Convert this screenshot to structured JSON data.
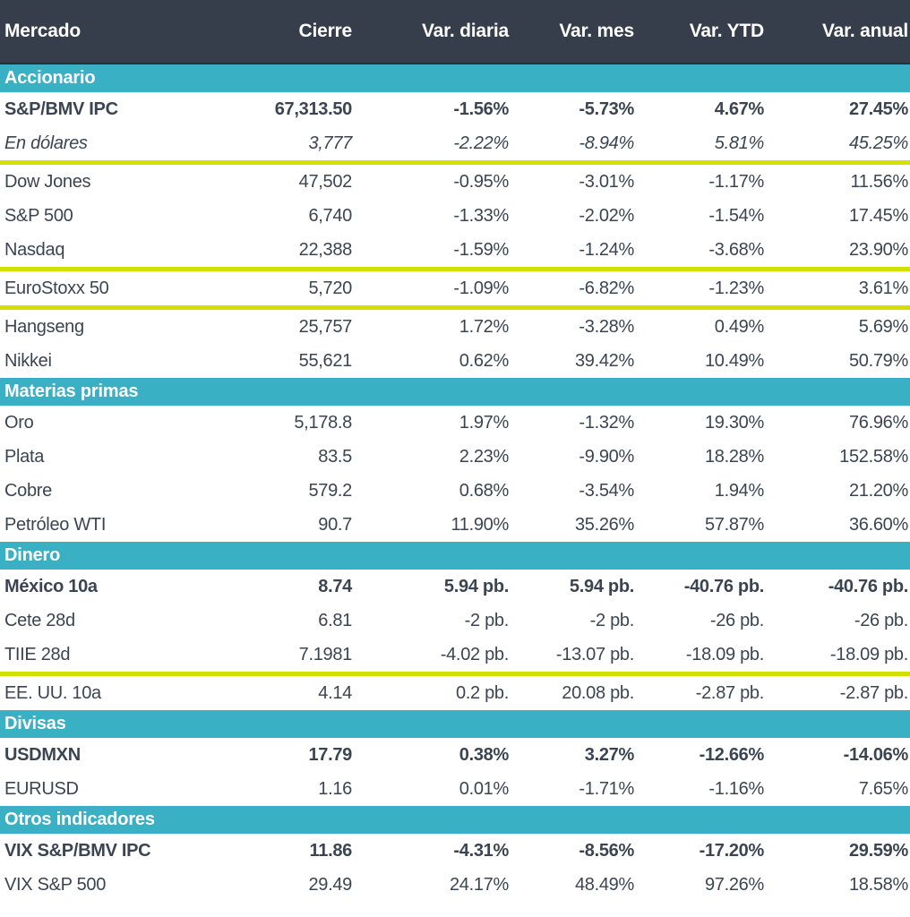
{
  "colors": {
    "header_bg": "#353e4a",
    "section_bg": "#3ab0c4",
    "text_color": "#3b4552",
    "highlight_yellow": "#d3e000"
  },
  "chart_data": {
    "type": "table",
    "title": "Mercado",
    "columns": [
      "Mercado",
      "Cierre",
      "Var. diaria",
      "Var. mes",
      "Var. YTD",
      "Var. anual"
    ],
    "sections": [
      {
        "label": "Accionario",
        "rows": [
          {
            "name": "S&P/BMV IPC",
            "values": [
              "67,313.50",
              "-1.56%",
              "-5.73%",
              "4.67%",
              "27.45%"
            ],
            "style": "bold"
          },
          {
            "name": "En dólares",
            "values": [
              "3,777",
              "-2.22%",
              "-8.94%",
              "5.81%",
              "45.25%"
            ],
            "style": "italic",
            "highlight_bottom": true
          },
          {
            "name": "Dow Jones",
            "values": [
              "47,502",
              "-0.95%",
              "-3.01%",
              "-1.17%",
              "11.56%"
            ]
          },
          {
            "name": "S&P 500",
            "values": [
              "6,740",
              "-1.33%",
              "-2.02%",
              "-1.54%",
              "17.45%"
            ]
          },
          {
            "name": "Nasdaq",
            "values": [
              "22,388",
              "-1.59%",
              "-1.24%",
              "-3.68%",
              "23.90%"
            ]
          },
          {
            "name": "EuroStoxx 50",
            "values": [
              "5,720",
              "-1.09%",
              "-6.82%",
              "-1.23%",
              "3.61%"
            ],
            "highlight_top": true,
            "highlight_bottom": true
          },
          {
            "name": "Hangseng",
            "values": [
              "25,757",
              "1.72%",
              "-3.28%",
              "0.49%",
              "5.69%"
            ]
          },
          {
            "name": "Nikkei",
            "values": [
              "55,621",
              "0.62%",
              "39.42%",
              "10.49%",
              "50.79%"
            ]
          }
        ]
      },
      {
        "label": "Materias primas",
        "rows": [
          {
            "name": "Oro",
            "values": [
              "5,178.8",
              "1.97%",
              "-1.32%",
              "19.30%",
              "76.96%"
            ]
          },
          {
            "name": "Plata",
            "values": [
              "83.5",
              "2.23%",
              "-9.90%",
              "18.28%",
              "152.58%"
            ]
          },
          {
            "name": "Cobre",
            "values": [
              "579.2",
              "0.68%",
              "-3.54%",
              "1.94%",
              "21.20%"
            ]
          },
          {
            "name": "Petróleo WTI",
            "values": [
              "90.7",
              "11.90%",
              "35.26%",
              "57.87%",
              "36.60%"
            ]
          }
        ]
      },
      {
        "label": "Dinero",
        "rows": [
          {
            "name": "México 10a",
            "values": [
              "8.74",
              "5.94 pb.",
              "5.94 pb.",
              "-40.76 pb.",
              "-40.76 pb."
            ],
            "style": "bold"
          },
          {
            "name": "Cete 28d",
            "values": [
              "6.81",
              "-2 pb.",
              "-2 pb.",
              "-26 pb.",
              "-26 pb."
            ]
          },
          {
            "name": "TIIE 28d",
            "values": [
              "7.1981",
              "-4.02 pb.",
              "-13.07 pb.",
              "-18.09 pb.",
              "-18.09 pb."
            ],
            "highlight_bottom": true
          },
          {
            "name": "EE. UU. 10a",
            "values": [
              "4.14",
              "0.2 pb.",
              "20.08 pb.",
              "-2.87 pb.",
              "-2.87 pb."
            ]
          }
        ]
      },
      {
        "label": "Divisas",
        "rows": [
          {
            "name": "USDMXN",
            "values": [
              "17.79",
              "0.38%",
              "3.27%",
              "-12.66%",
              "-14.06%"
            ],
            "style": "bold"
          },
          {
            "name": "EURUSD",
            "values": [
              "1.16",
              "0.01%",
              "-1.71%",
              "-1.16%",
              "7.65%"
            ]
          }
        ]
      },
      {
        "label": "Otros indicadores",
        "rows": [
          {
            "name": "VIX S&P/BMV IPC",
            "values": [
              "11.86",
              "-4.31%",
              "-8.56%",
              "-17.20%",
              "29.59%"
            ],
            "style": "bold"
          },
          {
            "name": "VIX S&P 500",
            "values": [
              "29.49",
              "24.17%",
              "48.49%",
              "97.26%",
              "18.58%"
            ]
          }
        ]
      }
    ]
  }
}
